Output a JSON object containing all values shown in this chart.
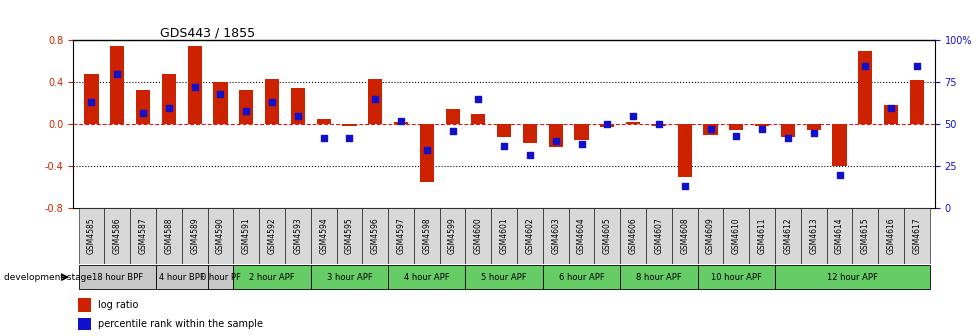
{
  "title": "GDS443 / 1855",
  "samples": [
    "GSM4585",
    "GSM4586",
    "GSM4587",
    "GSM4588",
    "GSM4589",
    "GSM4590",
    "GSM4591",
    "GSM4592",
    "GSM4593",
    "GSM4594",
    "GSM4595",
    "GSM4596",
    "GSM4597",
    "GSM4598",
    "GSM4599",
    "GSM4600",
    "GSM4601",
    "GSM4602",
    "GSM4603",
    "GSM4604",
    "GSM4605",
    "GSM4606",
    "GSM4607",
    "GSM4608",
    "GSM4609",
    "GSM4610",
    "GSM4611",
    "GSM4612",
    "GSM4613",
    "GSM4614",
    "GSM4615",
    "GSM4616",
    "GSM4617"
  ],
  "log_ratios": [
    0.48,
    0.75,
    0.33,
    0.48,
    0.75,
    0.4,
    0.33,
    0.43,
    0.35,
    0.05,
    -0.02,
    0.43,
    0.02,
    -0.55,
    0.15,
    0.1,
    -0.12,
    -0.18,
    -0.22,
    -0.15,
    -0.03,
    0.02,
    -0.02,
    -0.5,
    -0.1,
    -0.05,
    -0.02,
    -0.12,
    -0.05,
    -0.4,
    0.7,
    0.18,
    0.42
  ],
  "percentile_ranks": [
    63,
    80,
    57,
    60,
    72,
    68,
    58,
    63,
    55,
    42,
    42,
    65,
    52,
    35,
    46,
    65,
    37,
    32,
    40,
    38,
    50,
    55,
    50,
    13,
    47,
    43,
    47,
    42,
    45,
    20,
    85,
    60,
    85
  ],
  "stages": [
    {
      "label": "18 hour BPF",
      "start": 0,
      "end": 3,
      "color": "#c8c8c8"
    },
    {
      "label": "4 hour BPF",
      "start": 3,
      "end": 5,
      "color": "#c8c8c8"
    },
    {
      "label": "0 hour PF",
      "start": 5,
      "end": 6,
      "color": "#c8c8c8"
    },
    {
      "label": "2 hour APF",
      "start": 6,
      "end": 9,
      "color": "#66cc66"
    },
    {
      "label": "3 hour APF",
      "start": 9,
      "end": 12,
      "color": "#66cc66"
    },
    {
      "label": "4 hour APF",
      "start": 12,
      "end": 15,
      "color": "#66cc66"
    },
    {
      "label": "5 hour APF",
      "start": 15,
      "end": 18,
      "color": "#66cc66"
    },
    {
      "label": "6 hour APF",
      "start": 18,
      "end": 21,
      "color": "#66cc66"
    },
    {
      "label": "8 hour APF",
      "start": 21,
      "end": 24,
      "color": "#66cc66"
    },
    {
      "label": "10 hour APF",
      "start": 24,
      "end": 27,
      "color": "#66cc66"
    },
    {
      "label": "12 hour APF",
      "start": 27,
      "end": 33,
      "color": "#66cc66"
    }
  ],
  "bar_color": "#cc2200",
  "dot_color": "#1111cc",
  "ylim_left": [
    -0.8,
    0.8
  ],
  "yticks_left": [
    -0.8,
    -0.4,
    0.0,
    0.4,
    0.8
  ],
  "yticks_right": [
    0,
    25,
    50,
    75,
    100
  ],
  "ytick_labels_right": [
    "0",
    "25",
    "50",
    "75",
    "100%"
  ]
}
